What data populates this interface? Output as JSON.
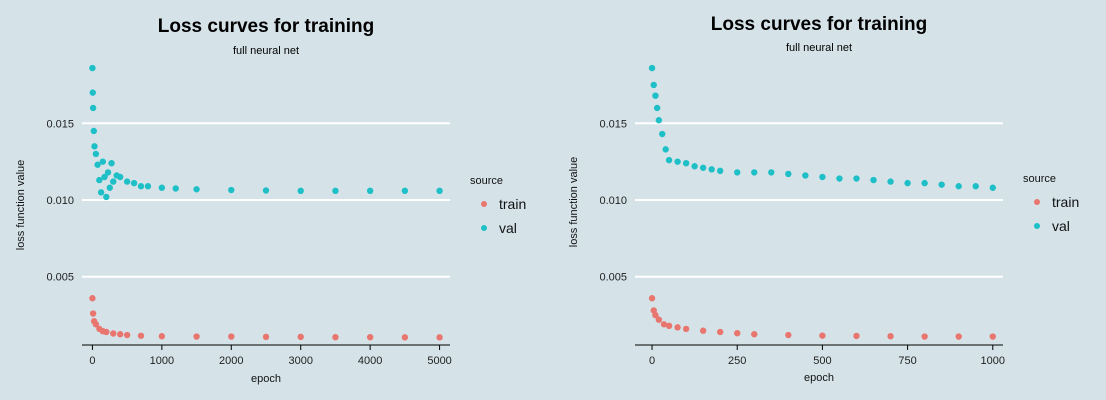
{
  "colors": {
    "background": "#d5e3e9",
    "train": "#e8766f",
    "val": "#1ebfc6",
    "gridline": "#ffffff",
    "axis": "#000000"
  },
  "chart_data": [
    {
      "type": "scatter",
      "title": "Loss curves for training",
      "subtitle": "full neural net",
      "xlabel": "epoch",
      "ylabel": "loss function value",
      "xlim": [
        -150,
        5150
      ],
      "ylim": [
        0.00055,
        0.0188
      ],
      "x_ticks": [
        0,
        1000,
        2000,
        3000,
        4000,
        5000
      ],
      "y_ticks": [
        0.005,
        0.01,
        0.015
      ],
      "y_tick_labels": [
        "0.005",
        "0.010",
        "0.015"
      ],
      "grid": "horizontal",
      "legend": {
        "title": "source",
        "position": "right",
        "entries": [
          "train",
          "val"
        ]
      },
      "series": [
        {
          "name": "train",
          "x": [
            0,
            10,
            25,
            50,
            100,
            150,
            200,
            300,
            400,
            500,
            700,
            1000,
            1500,
            2000,
            2500,
            3000,
            3500,
            4000,
            4500,
            5000
          ],
          "y": [
            0.0036,
            0.0026,
            0.0021,
            0.0019,
            0.0016,
            0.00145,
            0.0014,
            0.0013,
            0.00125,
            0.0012,
            0.00115,
            0.00112,
            0.0011,
            0.0011,
            0.00108,
            0.00108,
            0.00106,
            0.00106,
            0.00105,
            0.00105
          ]
        },
        {
          "name": "val",
          "x": [
            0,
            5,
            10,
            20,
            30,
            50,
            75,
            100,
            125,
            150,
            175,
            200,
            225,
            250,
            275,
            300,
            350,
            400,
            500,
            600,
            700,
            800,
            1000,
            1200,
            1500,
            2000,
            2500,
            3000,
            3500,
            4000,
            4500,
            5000
          ],
          "y": [
            0.0186,
            0.017,
            0.016,
            0.0145,
            0.0135,
            0.013,
            0.0123,
            0.0113,
            0.0105,
            0.0125,
            0.0115,
            0.0102,
            0.0118,
            0.0108,
            0.0124,
            0.0112,
            0.0116,
            0.0115,
            0.0112,
            0.0111,
            0.0109,
            0.0109,
            0.0108,
            0.01075,
            0.0107,
            0.01065,
            0.01062,
            0.0106,
            0.0106,
            0.0106,
            0.0106,
            0.0106
          ]
        }
      ]
    },
    {
      "type": "scatter",
      "title": "Loss curves for training",
      "subtitle": "full neural net",
      "xlabel": "epoch",
      "ylabel": "loss function value",
      "xlim": [
        -50,
        1030
      ],
      "ylim": [
        0.00055,
        0.0188
      ],
      "x_ticks": [
        0,
        250,
        500,
        750,
        1000
      ],
      "y_ticks": [
        0.005,
        0.01,
        0.015
      ],
      "y_tick_labels": [
        "0.005",
        "0.010",
        "0.015"
      ],
      "grid": "horizontal",
      "legend": {
        "title": "source",
        "position": "right",
        "entries": [
          "train",
          "val"
        ]
      },
      "series": [
        {
          "name": "train",
          "x": [
            0,
            5,
            10,
            20,
            35,
            50,
            75,
            100,
            150,
            200,
            250,
            300,
            400,
            500,
            600,
            700,
            800,
            900,
            1000
          ],
          "y": [
            0.0036,
            0.0028,
            0.0025,
            0.0022,
            0.0019,
            0.0018,
            0.0017,
            0.0016,
            0.00148,
            0.0014,
            0.00132,
            0.00125,
            0.0012,
            0.00116,
            0.00114,
            0.00112,
            0.0011,
            0.0011,
            0.0011
          ]
        },
        {
          "name": "val",
          "x": [
            0,
            5,
            10,
            15,
            20,
            30,
            40,
            50,
            75,
            100,
            125,
            150,
            175,
            200,
            250,
            300,
            350,
            400,
            450,
            500,
            550,
            600,
            650,
            700,
            750,
            800,
            850,
            900,
            950,
            1000
          ],
          "y": [
            0.0186,
            0.0175,
            0.0168,
            0.016,
            0.0152,
            0.0143,
            0.0133,
            0.0126,
            0.0125,
            0.0124,
            0.0122,
            0.0121,
            0.012,
            0.0119,
            0.0118,
            0.0118,
            0.0118,
            0.0117,
            0.0116,
            0.0115,
            0.0114,
            0.0114,
            0.0113,
            0.0112,
            0.0111,
            0.0111,
            0.011,
            0.0109,
            0.0109,
            0.0108
          ]
        }
      ]
    }
  ]
}
